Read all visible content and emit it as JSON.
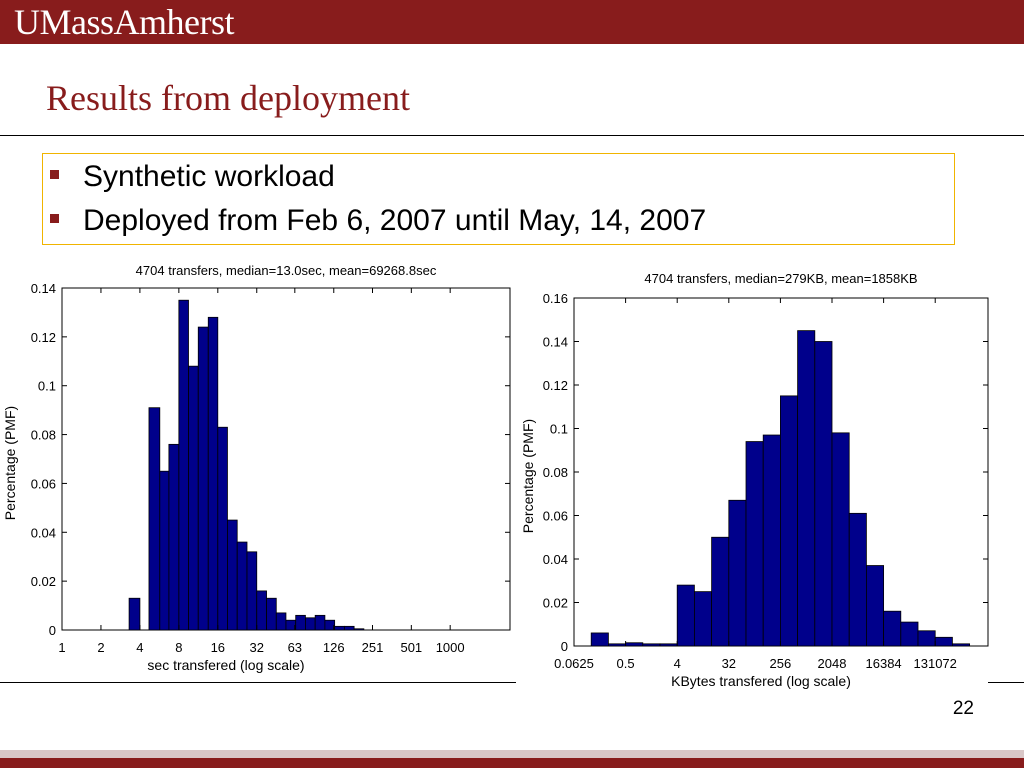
{
  "header": {
    "logo": "UMassAmherst"
  },
  "slide": {
    "title": "Results from deployment",
    "bullets": [
      "Synthetic workload",
      "Deployed from Feb 6, 2007 until May, 14, 2007"
    ],
    "page_number": "22"
  },
  "colors": {
    "brand": "#881c1c",
    "bar": "#00008b",
    "box_border": "#f0b400"
  },
  "chart_data": [
    {
      "type": "bar",
      "title": "4704 transfers, median=13.0sec, mean=69268.8sec",
      "xlabel": "sec transfered (log scale)",
      "ylabel": "Percentage (PMF)",
      "xscale": "log",
      "xlim": [
        1,
        2900
      ],
      "ylim": [
        0,
        0.14
      ],
      "xticks": [
        "1",
        "2",
        "4",
        "8",
        "16",
        "32",
        "63",
        "126",
        "251",
        "501",
        "1000"
      ],
      "yticks": [
        "0",
        "0.02",
        "0.04",
        "0.06",
        "0.08",
        "0.1",
        "0.12",
        "0.14"
      ],
      "bins": [
        {
          "x0": 3.3,
          "x1": 4.0,
          "value": 0.013
        },
        {
          "x0": 4.7,
          "x1": 5.7,
          "value": 0.091
        },
        {
          "x0": 5.7,
          "x1": 6.7,
          "value": 0.065
        },
        {
          "x0": 6.7,
          "x1": 8.0,
          "value": 0.076
        },
        {
          "x0": 8.0,
          "x1": 9.5,
          "value": 0.135
        },
        {
          "x0": 9.5,
          "x1": 11.3,
          "value": 0.108
        },
        {
          "x0": 11.3,
          "x1": 13.5,
          "value": 0.124
        },
        {
          "x0": 13.5,
          "x1": 16.0,
          "value": 0.128
        },
        {
          "x0": 16.0,
          "x1": 19.0,
          "value": 0.083
        },
        {
          "x0": 19.0,
          "x1": 22.6,
          "value": 0.045
        },
        {
          "x0": 22.6,
          "x1": 26.9,
          "value": 0.036
        },
        {
          "x0": 26.9,
          "x1": 32.0,
          "value": 0.032
        },
        {
          "x0": 32.0,
          "x1": 38.1,
          "value": 0.016
        },
        {
          "x0": 38.1,
          "x1": 45.3,
          "value": 0.013
        },
        {
          "x0": 45.3,
          "x1": 53.8,
          "value": 0.007
        },
        {
          "x0": 53.8,
          "x1": 64.0,
          "value": 0.004
        },
        {
          "x0": 64.0,
          "x1": 76.1,
          "value": 0.006
        },
        {
          "x0": 76.1,
          "x1": 90.5,
          "value": 0.005
        },
        {
          "x0": 90.5,
          "x1": 107.6,
          "value": 0.006
        },
        {
          "x0": 107.6,
          "x1": 128.0,
          "value": 0.004
        },
        {
          "x0": 128.0,
          "x1": 152.2,
          "value": 0.0015
        },
        {
          "x0": 152.2,
          "x1": 181.0,
          "value": 0.0015
        },
        {
          "x0": 181.0,
          "x1": 215.3,
          "value": 0.0005
        }
      ]
    },
    {
      "type": "bar",
      "title": "4704 transfers, median=279KB, mean=1858KB",
      "xlabel": "KBytes transfered (log scale)",
      "ylabel": "Percentage (PMF)",
      "xscale": "log",
      "xlim": [
        0.0625,
        1100000
      ],
      "ylim": [
        0,
        0.16
      ],
      "xticks": [
        "0.0625",
        "0.5",
        "4",
        "32",
        "256",
        "2048",
        "16384",
        "131072"
      ],
      "yticks": [
        "0",
        "0.02",
        "0.04",
        "0.06",
        "0.08",
        "0.1",
        "0.12",
        "0.14",
        "0.16"
      ],
      "bins": [
        {
          "x0": 0.125,
          "x1": 0.25,
          "value": 0.006
        },
        {
          "x0": 0.25,
          "x1": 0.5,
          "value": 0.001
        },
        {
          "x0": 0.5,
          "x1": 1,
          "value": 0.0015
        },
        {
          "x0": 1,
          "x1": 2,
          "value": 0.001
        },
        {
          "x0": 2,
          "x1": 4,
          "value": 0.001
        },
        {
          "x0": 4,
          "x1": 8,
          "value": 0.028
        },
        {
          "x0": 8,
          "x1": 16,
          "value": 0.025
        },
        {
          "x0": 16,
          "x1": 32,
          "value": 0.05
        },
        {
          "x0": 32,
          "x1": 64,
          "value": 0.067
        },
        {
          "x0": 64,
          "x1": 128,
          "value": 0.094
        },
        {
          "x0": 128,
          "x1": 256,
          "value": 0.097
        },
        {
          "x0": 256,
          "x1": 512,
          "value": 0.115
        },
        {
          "x0": 512,
          "x1": 1024,
          "value": 0.145
        },
        {
          "x0": 1024,
          "x1": 2048,
          "value": 0.14
        },
        {
          "x0": 2048,
          "x1": 4096,
          "value": 0.098
        },
        {
          "x0": 4096,
          "x1": 8192,
          "value": 0.061
        },
        {
          "x0": 8192,
          "x1": 16384,
          "value": 0.037
        },
        {
          "x0": 16384,
          "x1": 32768,
          "value": 0.016
        },
        {
          "x0": 32768,
          "x1": 65536,
          "value": 0.011
        },
        {
          "x0": 65536,
          "x1": 131072,
          "value": 0.007
        },
        {
          "x0": 131072,
          "x1": 262144,
          "value": 0.004
        },
        {
          "x0": 262144,
          "x1": 524288,
          "value": 0.001
        }
      ]
    }
  ]
}
